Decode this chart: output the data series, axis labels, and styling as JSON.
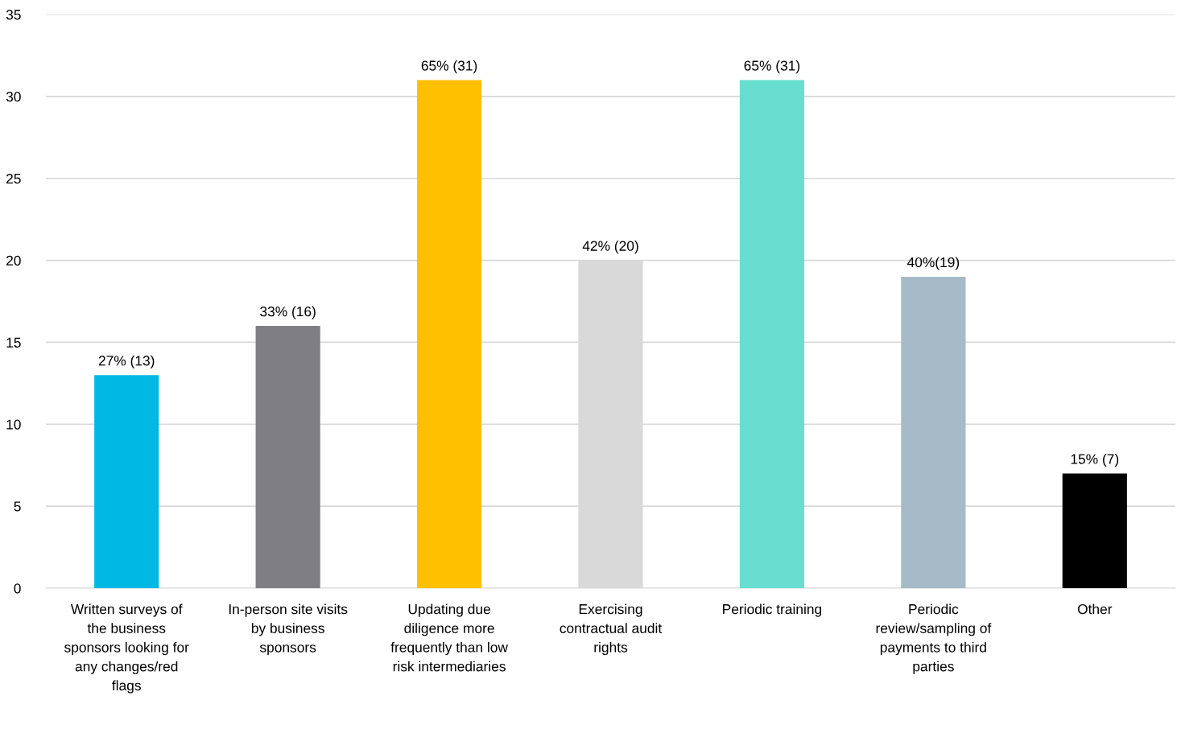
{
  "chart_data": {
    "type": "bar",
    "categories": [
      "Written surveys of the business sponsors looking for any changes/red flags",
      "In-person site visits by business sponsors",
      "Updating due diligence more frequently than low risk intermediaries",
      "Exercising contractual audit rights",
      "Periodic training",
      "Periodic review/sampling of payments to third parties",
      "Other"
    ],
    "values": [
      13,
      16,
      31,
      20,
      31,
      19,
      7
    ],
    "colors": [
      "#00b9e2",
      "#7f7e83",
      "#ffc000",
      "#d9d9d9",
      "#67ded0",
      "#a6bac7",
      "#000000"
    ],
    "value_labels": [
      "27% (13)",
      "33% (16)",
      "65% (31)",
      "42% (20)",
      "65% (31)",
      "40%(19)",
      "15% (7)"
    ],
    "ylim": [
      0,
      35
    ],
    "yticks": [
      0,
      5,
      10,
      15,
      20,
      25,
      30,
      35
    ],
    "grid": "y",
    "legend": false
  }
}
